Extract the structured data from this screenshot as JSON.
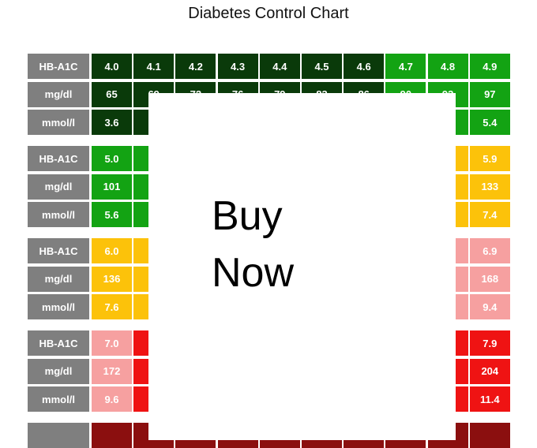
{
  "title": "Diabetes Control Chart",
  "overlay": {
    "line1": "Buy",
    "line2": "Now"
  },
  "colors": {
    "dark_green": "#0a3a0a",
    "green": "#13a313",
    "yellow": "#fcc20a",
    "pink": "#f6a0a0",
    "red": "#ef1313",
    "dark_red": "#8b0f0f",
    "label_gray": "#7f7f7f"
  },
  "blocks": [
    {
      "rows": [
        {
          "label": "HB-A1C",
          "values": [
            "4.0",
            "4.1",
            "4.2",
            "4.3",
            "4.4",
            "4.5",
            "4.6",
            "4.7",
            "4.8",
            "4.9"
          ]
        },
        {
          "label": "mg/dl",
          "values": [
            "65",
            "69",
            "72",
            "76",
            "79",
            "83",
            "86",
            "90",
            "93",
            "97"
          ]
        },
        {
          "label": "mmol/l",
          "values": [
            "3.6",
            "",
            "",
            "",
            "",
            "",
            "",
            "",
            "",
            "5.4"
          ]
        }
      ],
      "colors": [
        "dark-green",
        "dark-green",
        "dark-green",
        "dark-green",
        "dark-green",
        "dark-green",
        "dark-green",
        "green",
        "green",
        "green"
      ]
    },
    {
      "rows": [
        {
          "label": "HB-A1C",
          "values": [
            "5.0",
            "",
            "",
            "",
            "",
            "",
            "",
            "",
            "",
            "5.9"
          ]
        },
        {
          "label": "mg/dl",
          "values": [
            "101",
            "",
            "",
            "",
            "",
            "",
            "",
            "",
            "",
            "133"
          ]
        },
        {
          "label": "mmol/l",
          "values": [
            "5.6",
            "",
            "",
            "",
            "",
            "",
            "",
            "",
            "",
            "7.4"
          ]
        }
      ],
      "colors": [
        "green",
        "green",
        "yellow",
        "yellow",
        "yellow",
        "yellow",
        "yellow",
        "yellow",
        "yellow",
        "yellow"
      ]
    },
    {
      "rows": [
        {
          "label": "HB-A1C",
          "values": [
            "6.0",
            "",
            "",
            "",
            "",
            "",
            "",
            "",
            "",
            "6.9"
          ]
        },
        {
          "label": "mg/dl",
          "values": [
            "136",
            "",
            "",
            "",
            "",
            "",
            "",
            "",
            "",
            "168"
          ]
        },
        {
          "label": "mmol/l",
          "values": [
            "7.6",
            "",
            "",
            "",
            "",
            "",
            "",
            "",
            "",
            "9.4"
          ]
        }
      ],
      "colors": [
        "yellow",
        "yellow",
        "pink",
        "pink",
        "pink",
        "pink",
        "pink",
        "pink",
        "pink",
        "pink"
      ]
    },
    {
      "rows": [
        {
          "label": "HB-A1C",
          "values": [
            "7.0",
            "",
            "",
            "",
            "",
            "",
            "",
            "",
            "",
            "7.9"
          ]
        },
        {
          "label": "mg/dl",
          "values": [
            "172",
            "",
            "",
            "",
            "",
            "",
            "",
            "",
            "",
            "204"
          ]
        },
        {
          "label": "mmol/l",
          "values": [
            "9.6",
            "",
            "",
            "",
            "",
            "",
            "",
            "",
            "",
            "11.4"
          ]
        }
      ],
      "colors": [
        "pink",
        "red",
        "red",
        "red",
        "red",
        "red",
        "red",
        "red",
        "red",
        "red"
      ]
    },
    {
      "rows": [
        {
          "label": "",
          "values": [
            "",
            "",
            "",
            "",
            "",
            "",
            "",
            "",
            "",
            ""
          ]
        }
      ],
      "colors": [
        "dark-red",
        "dark-red",
        "dark-red",
        "dark-red",
        "dark-red",
        "dark-red",
        "dark-red",
        "dark-red",
        "dark-red",
        "dark-red"
      ]
    }
  ]
}
